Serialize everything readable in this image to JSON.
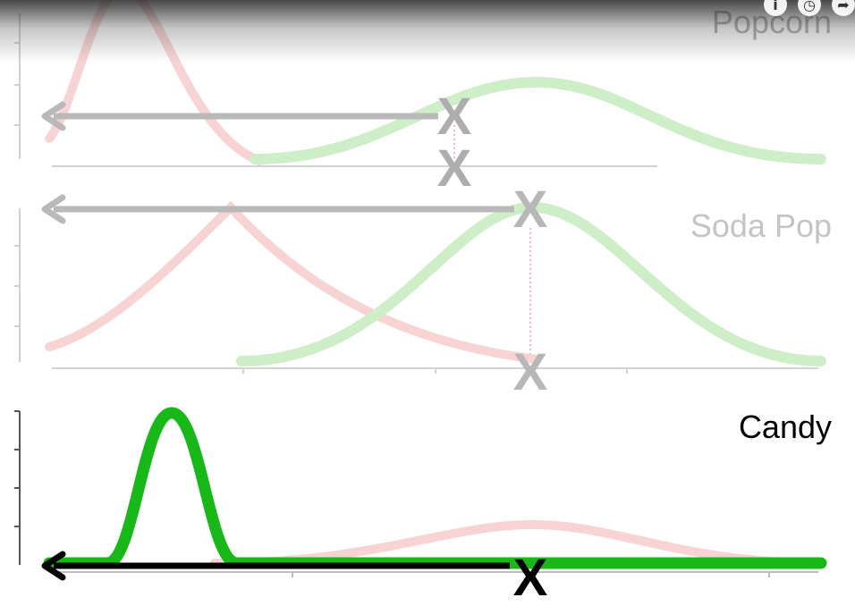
{
  "panels": {
    "popcorn": {
      "label": "Popcorn",
      "color": "#adadad",
      "mark": "X"
    },
    "soda_pop": {
      "label": "Soda Pop",
      "color": "#c4c4c4",
      "mark": "X"
    },
    "candy": {
      "label": "Candy",
      "color": "#000000",
      "mark": "X"
    }
  },
  "colors": {
    "green_strong": "#17b817",
    "green_faded": "#cdeec7",
    "red_faded": "#f8d3d3",
    "arrow_faded": "#b9b9b9",
    "arrow_strong": "#000000",
    "axis": "#c8c8c8"
  },
  "player_controls": {
    "icons": [
      "info-icon",
      "clock-icon",
      "share-icon"
    ],
    "glyphs": [
      "i",
      "◷",
      "➦"
    ]
  }
}
